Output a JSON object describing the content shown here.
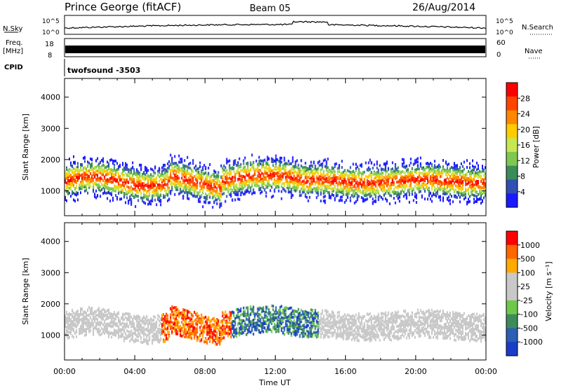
{
  "header": {
    "station": "Prince George (fitACF)",
    "beam": "Beam 05",
    "date": "26/Aug/2014"
  },
  "noise_panel": {
    "left_label": "N.Sky",
    "right_label": "N.Search",
    "left_ticks": [
      "10^5",
      "10^0"
    ],
    "right_ticks": [
      "10^5",
      "10^0"
    ]
  },
  "freq_panel": {
    "left_label": "Freq.",
    "left_unit": "[MHz]",
    "left_ticks": [
      "18",
      "8"
    ],
    "right_label": "Nave",
    "right_ticks": [
      "60",
      "0"
    ],
    "cpid_label": "CPID",
    "cpid_value": "twofsound -3503"
  },
  "colors": {
    "power_scale": [
      "#1a1aff",
      "#2f4fb4",
      "#3c8c5a",
      "#7fc850",
      "#c8e650",
      "#ffcc00",
      "#ff8800",
      "#ff4400",
      "#ff0000"
    ],
    "velocity_scale": [
      "#1a3cc8",
      "#2a5fb4",
      "#3c8c5a",
      "#6fc84a",
      "#c8c8c8",
      "#c8c8c8",
      "#ffaa00",
      "#ff6600",
      "#ff0000"
    ]
  },
  "chart_data": [
    {
      "type": "heatmap",
      "name": "power",
      "ylabel": "Slant Range [km]",
      "yticks": [
        1000,
        2000,
        3000,
        4000
      ],
      "ylim": [
        200,
        4600
      ],
      "xlabel": "Time UT",
      "xticks": [
        "00:00",
        "04:00",
        "08:00",
        "12:00",
        "16:00",
        "20:00",
        "00:00"
      ],
      "colorbar_title": "Power [dB]",
      "colorbar_ticks": [
        "28",
        "24",
        "20",
        "16",
        "12",
        "8",
        "4"
      ],
      "clim": [
        0,
        32
      ]
    },
    {
      "type": "heatmap",
      "name": "velocity",
      "ylabel": "Slant Range [km]",
      "yticks": [
        1000,
        2000,
        3000,
        4000
      ],
      "ylim": [
        200,
        4600
      ],
      "xlabel": "Time UT",
      "xticks": [
        "00:00",
        "04:00",
        "08:00",
        "12:00",
        "16:00",
        "20:00",
        "00:00"
      ],
      "colorbar_title": "Velocity [m s⁻¹]",
      "colorbar_ticks": [
        "1000",
        "500",
        "100",
        "25",
        "-25",
        "-100",
        "-500",
        "-1000"
      ]
    }
  ]
}
